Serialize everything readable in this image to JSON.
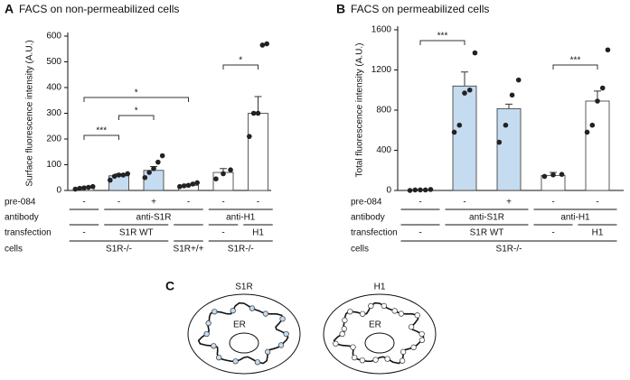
{
  "chart_data": [
    {
      "type": "bar",
      "panel": "A",
      "title": "FACS on non-permeabilized cells",
      "y_label": "Surface fluorescence intensity (A.U.)",
      "ylim": [
        0,
        600
      ],
      "yticks": [
        0,
        100,
        200,
        300,
        400,
        500,
        600
      ],
      "values": [
        10,
        57,
        78,
        20,
        70,
        300
      ],
      "errors": [
        3,
        8,
        15,
        4,
        15,
        65
      ],
      "colors": [
        "#ffffff",
        "#c5dbf0",
        "#c5dbf0",
        "#ffffff",
        "#ffffff",
        "#ffffff"
      ],
      "points": [
        [
          5,
          8,
          10,
          12,
          15
        ],
        [
          40,
          55,
          60,
          60,
          65
        ],
        [
          50,
          70,
          85,
          110,
          135
        ],
        [
          15,
          18,
          20,
          25,
          30
        ],
        [
          45,
          65,
          80
        ],
        [
          210,
          300,
          300,
          565,
          570
        ]
      ],
      "point_color": "#222222",
      "significance": [
        {
          "label": "***",
          "bars": [
            0,
            1
          ]
        },
        {
          "label": "*",
          "bars": [
            1,
            2
          ]
        },
        {
          "label": "*",
          "bars": [
            0,
            3
          ]
        },
        {
          "label": "*",
          "bars": [
            4,
            5
          ]
        }
      ],
      "row_labels": [
        "pre-084",
        "antibody",
        "transfection",
        "cells"
      ],
      "pre084": [
        "-",
        "-",
        "+",
        "-",
        "-",
        "-"
      ],
      "antibody": [
        {
          "label": null,
          "span": 1
        },
        {
          "label": "anti-S1R",
          "span": 3
        },
        {
          "label": "anti-H1",
          "span": 2
        }
      ],
      "transfection": [
        {
          "label": "-",
          "span": 1
        },
        {
          "label": "S1R WT",
          "span": 2
        },
        {
          "label": null,
          "span": 1
        },
        {
          "label": "-",
          "span": 1
        },
        {
          "label": "H1",
          "span": 1
        }
      ],
      "cells": [
        {
          "label": "S1R-/-",
          "span": 3
        },
        {
          "label": "S1R+/+",
          "span": 1
        },
        {
          "label": "S1R-/-",
          "span": 2
        }
      ]
    },
    {
      "type": "bar",
      "panel": "B",
      "title": "FACS on permeabilized cells",
      "y_label": "Total fluorescence intensity (A.U.)",
      "ylim": [
        0,
        1600
      ],
      "yticks": [
        0,
        400,
        800,
        1200,
        1600
      ],
      "values": [
        5,
        1040,
        815,
        150,
        890
      ],
      "errors": [
        3,
        140,
        45,
        30,
        100
      ],
      "colors": [
        "#ffffff",
        "#c5dbf0",
        "#c5dbf0",
        "#ffffff",
        "#ffffff"
      ],
      "points": [
        [
          0,
          5,
          5,
          5,
          10
        ],
        [
          580,
          650,
          970,
          1000,
          1370
        ],
        [
          480,
          650,
          950,
          1100
        ],
        [
          140,
          155,
          160
        ],
        [
          580,
          650,
          890,
          1020,
          1400
        ]
      ],
      "point_color": "#222222",
      "significance": [
        {
          "label": "***",
          "bars": [
            0,
            1
          ]
        },
        {
          "label": "***",
          "bars": [
            3,
            4
          ]
        }
      ],
      "row_labels": [
        "pre-084",
        "antibody",
        "transfection",
        "cells"
      ],
      "pre084": [
        "-",
        "-",
        "+",
        "-",
        "-"
      ],
      "antibody": [
        {
          "label": null,
          "span": 1
        },
        {
          "label": "anti-S1R",
          "span": 2
        },
        {
          "label": "anti-H1",
          "span": 2
        }
      ],
      "transfection": [
        {
          "label": "-",
          "span": 1
        },
        {
          "label": "S1R WT",
          "span": 2
        },
        {
          "label": "-",
          "span": 1
        },
        {
          "label": "H1",
          "span": 1
        }
      ],
      "cells": [
        {
          "label": "S1R-/-",
          "span": 5
        }
      ]
    }
  ],
  "diagram": {
    "panel": "C",
    "cells": [
      {
        "label": "S1R",
        "organelle": "ER"
      },
      {
        "label": "H1",
        "organelle": "ER"
      }
    ]
  }
}
